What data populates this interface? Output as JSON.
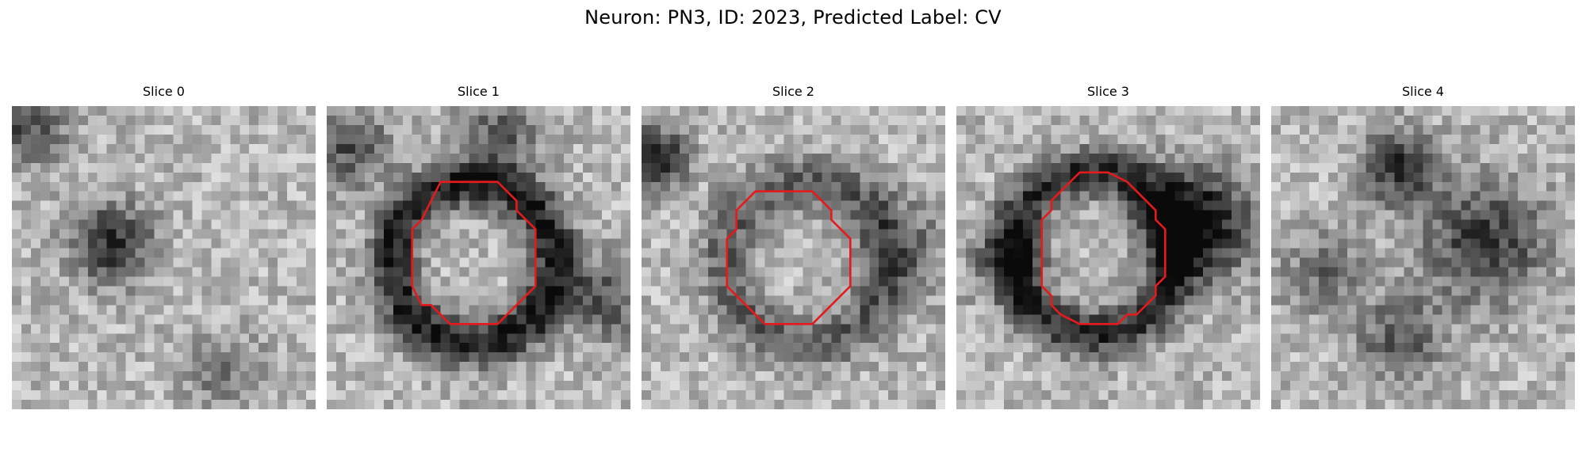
{
  "figure": {
    "title": "Neuron: PN3, ID: 2023, Predicted Label: CV"
  },
  "panels": [
    {
      "title": "Slice 0",
      "roi_visible": false
    },
    {
      "title": "Slice 1",
      "roi_visible": true
    },
    {
      "title": "Slice 2",
      "roi_visible": true
    },
    {
      "title": "Slice 3",
      "roi_visible": true
    },
    {
      "title": "Slice 4",
      "roi_visible": false
    }
  ],
  "colors": {
    "roi_outline": "#e41a1c",
    "background": "#ffffff"
  }
}
